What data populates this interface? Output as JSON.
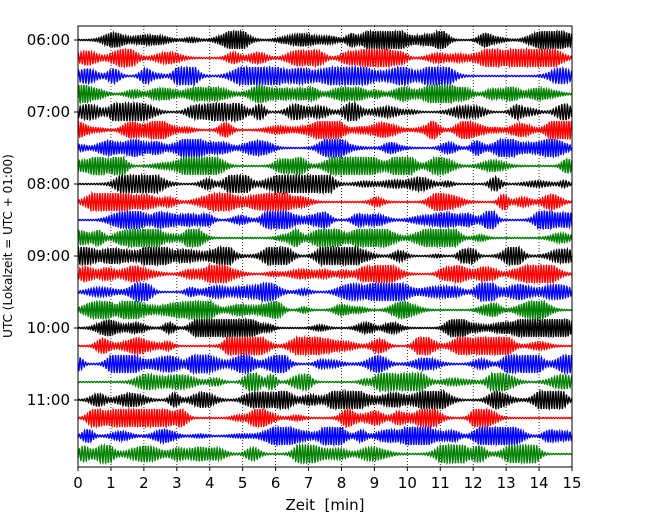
{
  "chart_data": {
    "type": "line",
    "title": "",
    "xlabel": "Zeit  [min]",
    "ylabel": "UTC (Lokalzeit = UTC + 01:00)",
    "xlim": [
      0,
      15
    ],
    "x_ticks": [
      "0",
      "1",
      "2",
      "3",
      "4",
      "5",
      "6",
      "7",
      "8",
      "9",
      "10",
      "11",
      "12",
      "13",
      "14",
      "15"
    ],
    "y_ticks": [
      "06:00",
      "07:00",
      "08:00",
      "09:00",
      "10:00",
      "11:00"
    ],
    "grid": "vertical dotted lines at each minute",
    "legend": "none",
    "trace_interval_minutes": 15,
    "traces": [
      {
        "start": "06:00",
        "color": "#000000"
      },
      {
        "start": "06:15",
        "color": "#ff0000"
      },
      {
        "start": "06:30",
        "color": "#0000ff"
      },
      {
        "start": "06:45",
        "color": "#008000"
      },
      {
        "start": "07:00",
        "color": "#000000"
      },
      {
        "start": "07:15",
        "color": "#ff0000"
      },
      {
        "start": "07:30",
        "color": "#0000ff"
      },
      {
        "start": "07:45",
        "color": "#008000"
      },
      {
        "start": "08:00",
        "color": "#000000"
      },
      {
        "start": "08:15",
        "color": "#ff0000"
      },
      {
        "start": "08:30",
        "color": "#0000ff"
      },
      {
        "start": "08:45",
        "color": "#008000"
      },
      {
        "start": "09:00",
        "color": "#000000"
      },
      {
        "start": "09:15",
        "color": "#ff0000"
      },
      {
        "start": "09:30",
        "color": "#0000ff"
      },
      {
        "start": "09:45",
        "color": "#008000"
      },
      {
        "start": "10:00",
        "color": "#000000"
      },
      {
        "start": "10:15",
        "color": "#ff0000"
      },
      {
        "start": "10:30",
        "color": "#0000ff"
      },
      {
        "start": "10:45",
        "color": "#008000"
      },
      {
        "start": "11:00",
        "color": "#000000"
      },
      {
        "start": "11:15",
        "color": "#ff0000"
      },
      {
        "start": "11:30",
        "color": "#0000ff"
      },
      {
        "start": "11:45",
        "color": "#008000"
      }
    ]
  }
}
